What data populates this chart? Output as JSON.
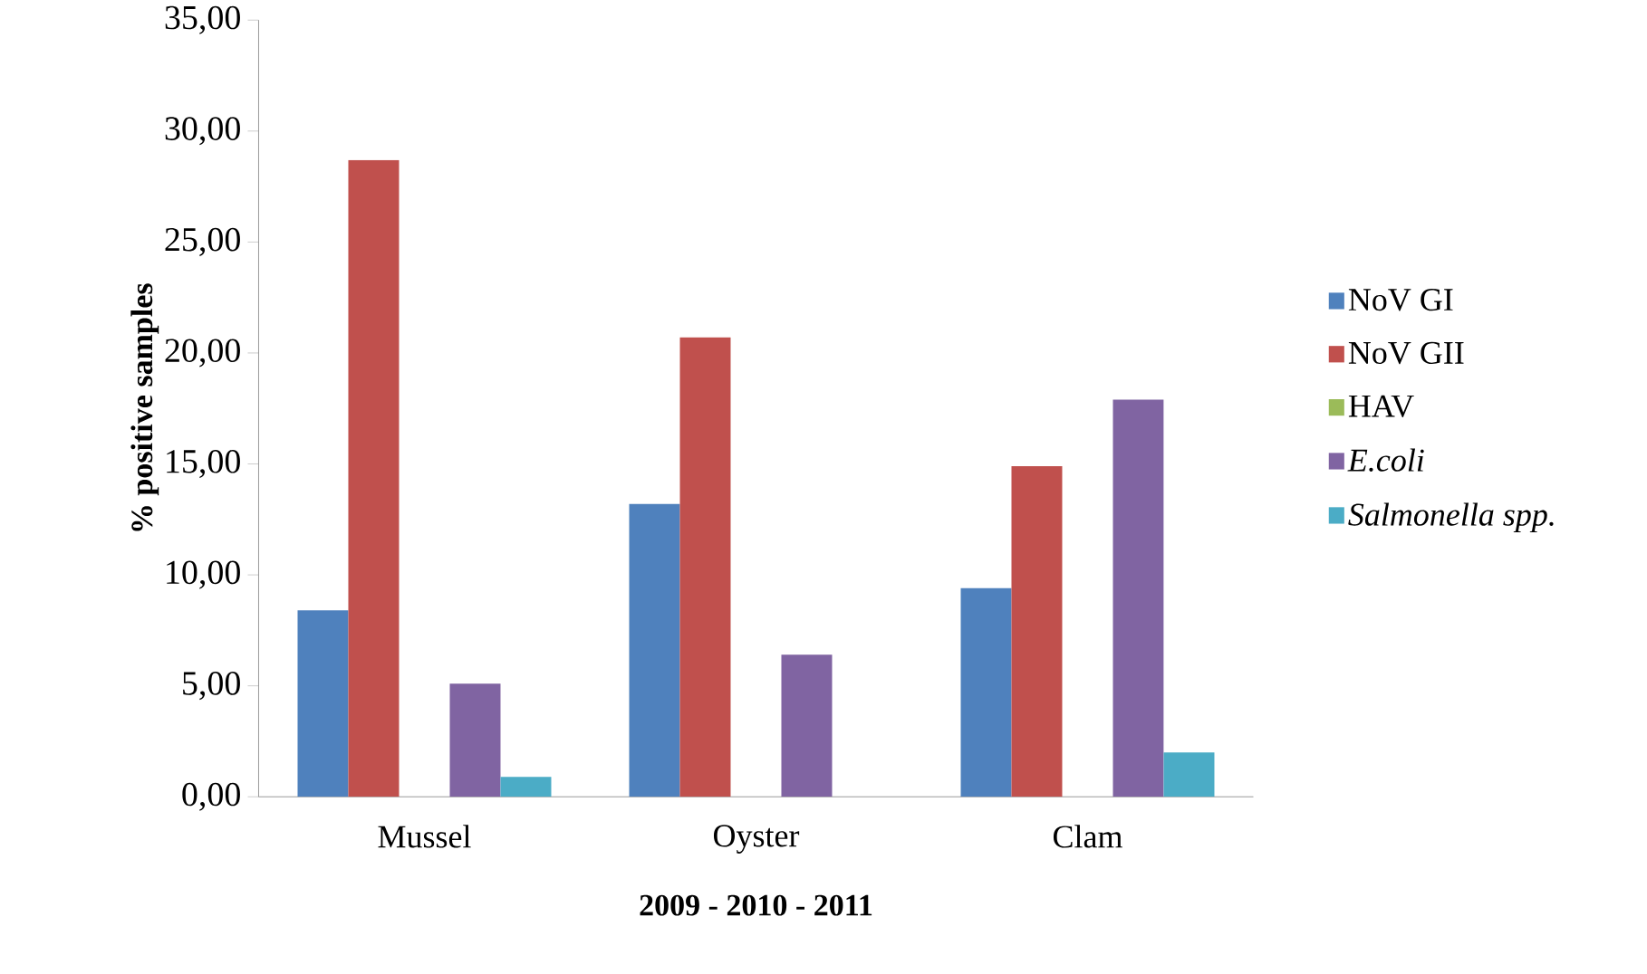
{
  "chart_data": {
    "type": "bar",
    "xlabel": "2009 - 2010 - 2011",
    "ylabel": "%  positive samples",
    "categories": [
      "Mussel",
      "Oyster",
      "Clam"
    ],
    "series": [
      {
        "name": "NoV GI",
        "color": "#4f81bd",
        "values": [
          8.4,
          13.2,
          9.4
        ]
      },
      {
        "name": "NoV GII",
        "color": "#c0504d",
        "values": [
          28.7,
          20.7,
          14.9
        ]
      },
      {
        "name": "HAV",
        "color": "#9bbb59",
        "values": [
          0,
          0,
          0
        ]
      },
      {
        "name": "*E.coli*",
        "color": "#8064a2",
        "values": [
          5.1,
          6.4,
          17.9
        ]
      },
      {
        "name": "*Salmonella spp.*",
        "color": "#4bacc6",
        "values": [
          0.9,
          0,
          2.0
        ]
      }
    ],
    "ylim": [
      0,
      35
    ],
    "yticks": [
      {
        "value": 0,
        "label": "0,00"
      },
      {
        "value": 5,
        "label": "5,00"
      },
      {
        "value": 10,
        "label": "10,00"
      },
      {
        "value": 15,
        "label": "15,00"
      },
      {
        "value": 20,
        "label": "20,00"
      },
      {
        "value": 25,
        "label": "25,00"
      },
      {
        "value": 30,
        "label": "30,00"
      },
      {
        "value": 35,
        "label": "35,00"
      }
    ],
    "legend": "right",
    "grid": false
  }
}
